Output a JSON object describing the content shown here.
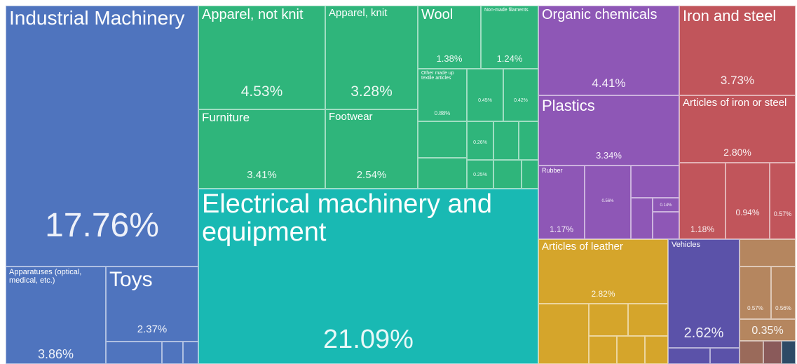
{
  "chart_data": {
    "type": "treemap",
    "categories": [
      "Industrial Machinery",
      "Apparatuses (optical, medical, etc.)",
      "Toys",
      "Apparel, not knit",
      "Apparel, knit",
      "Furniture",
      "Footwear",
      "Wool",
      "Non-made filaments",
      "Other made up textile articles",
      null,
      null,
      null,
      null,
      "Electrical machinery and equipment",
      "Organic chemicals",
      "Plastics",
      "Rubber",
      null,
      null,
      "Iron and steel",
      "Articles of iron or steel",
      null,
      null,
      null,
      "Articles of leather",
      "Vehicles",
      null,
      null,
      null
    ],
    "values": [
      17.76,
      3.86,
      2.37,
      4.53,
      3.28,
      3.41,
      2.54,
      1.38,
      1.24,
      0.88,
      0.45,
      0.42,
      0.26,
      0.25,
      21.09,
      4.41,
      3.34,
      1.17,
      0.56,
      0.14,
      3.73,
      2.8,
      1.18,
      0.94,
      0.57,
      2.82,
      2.62,
      0.57,
      0.56,
      0.35
    ],
    "value_labels": [
      "17.76%",
      "3.86%",
      "2.37%",
      "4.53%",
      "3.28%",
      "3.41%",
      "2.54%",
      "1.38%",
      "1.24%",
      "0.88%",
      "0.45%",
      "0.42%",
      "0.26%",
      "0.25%",
      "21.09%",
      "4.41%",
      "3.34%",
      "1.17%",
      "0.56%",
      "0.14%",
      "3.73%",
      "2.80%",
      "1.18%",
      "0.94%",
      "0.57%",
      "2.82%",
      "2.62%",
      "0.57%",
      "0.56%",
      "0.35%"
    ],
    "colors": [
      "#4f74be",
      "#4f74be",
      "#4f74be",
      "#2fb57b",
      "#2fb57b",
      "#2fb57b",
      "#2fb57b",
      "#2fb57b",
      "#2fb57b",
      "#2fb57b",
      "#2fb57b",
      "#2fb57b",
      "#2fb57b",
      "#2fb57b",
      "#19b9b3",
      "#8e57b6",
      "#8e57b6",
      "#8e57b6",
      "#8e57b6",
      "#8e57b6",
      "#c1555b",
      "#c1555b",
      "#c1555b",
      "#c1555b",
      "#c1555b",
      "#d5a52b",
      "#5b52a9",
      "#b5865f",
      "#b5865f",
      "#b5865f"
    ]
  }
}
